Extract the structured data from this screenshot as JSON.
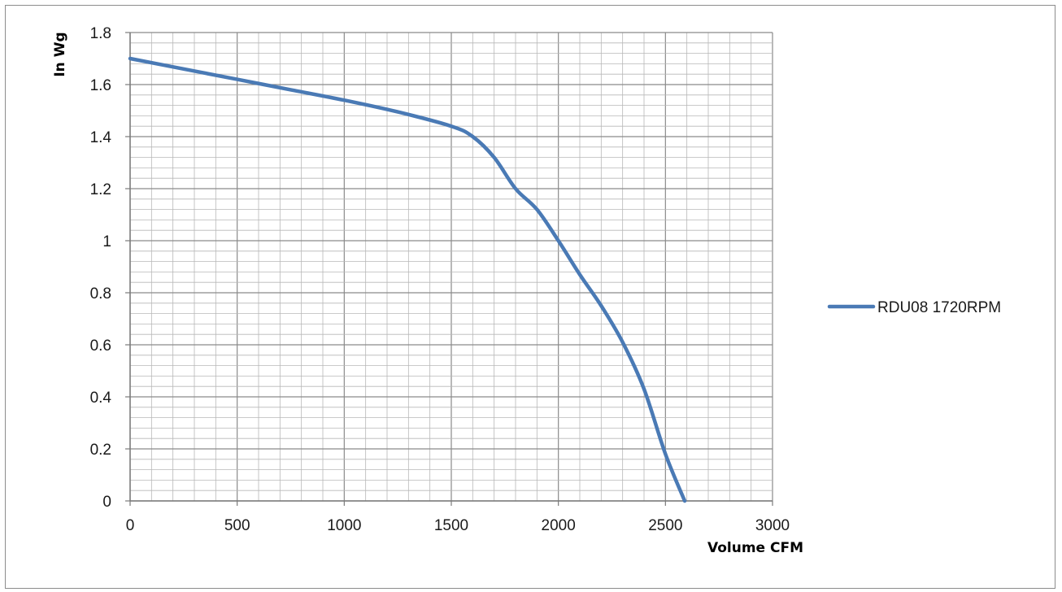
{
  "chart_data": {
    "type": "line",
    "title": "",
    "xlabel": "Volume CFM",
    "ylabel": "In Wg",
    "xlim": [
      0,
      3000
    ],
    "ylim": [
      0,
      1.8
    ],
    "x_ticks": [
      "0",
      "500",
      "1000",
      "1500",
      "2000",
      "2500",
      "3000"
    ],
    "y_ticks": [
      "0",
      "0.2",
      "0.4",
      "0.6",
      "0.8",
      "1",
      "1.2",
      "1.4",
      "1.6",
      "1.8"
    ],
    "grid": true,
    "minor_grid": true,
    "legend_position": "right",
    "series": [
      {
        "name": "RDU08 1720RPM",
        "color": "#4a7ab5",
        "x": [
          0,
          250,
          500,
          750,
          1000,
          1250,
          1500,
          1600,
          1700,
          1800,
          1900,
          2000,
          2100,
          2200,
          2300,
          2400,
          2500,
          2590
        ],
        "y": [
          1.7,
          1.66,
          1.62,
          1.58,
          1.54,
          1.495,
          1.44,
          1.4,
          1.32,
          1.2,
          1.12,
          1.0,
          0.87,
          0.75,
          0.61,
          0.43,
          0.18,
          0.0
        ]
      }
    ]
  }
}
